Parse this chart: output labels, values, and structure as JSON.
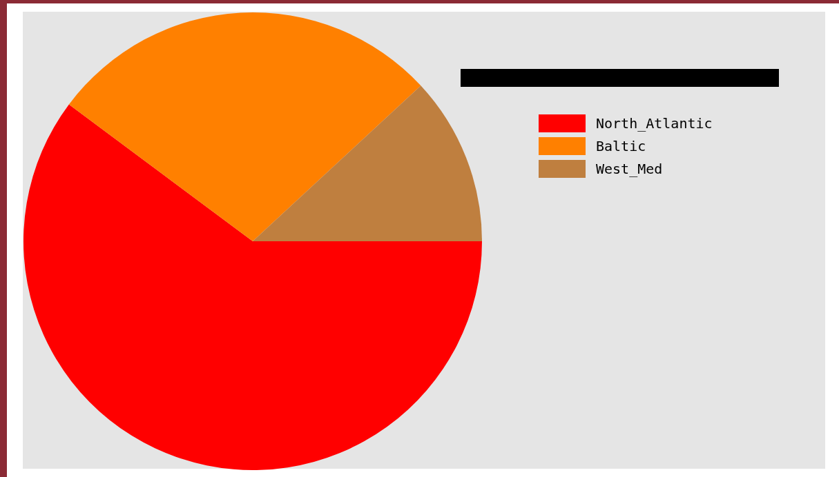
{
  "chart_data": {
    "type": "pie",
    "categories": [
      "North_Atlantic",
      "Baltic",
      "West_Med"
    ],
    "values": [
      60.2,
      27.9,
      11.9
    ],
    "colors": [
      "#ff0000",
      "#ff8000",
      "#bf7f3f"
    ],
    "legend": "right"
  }
}
